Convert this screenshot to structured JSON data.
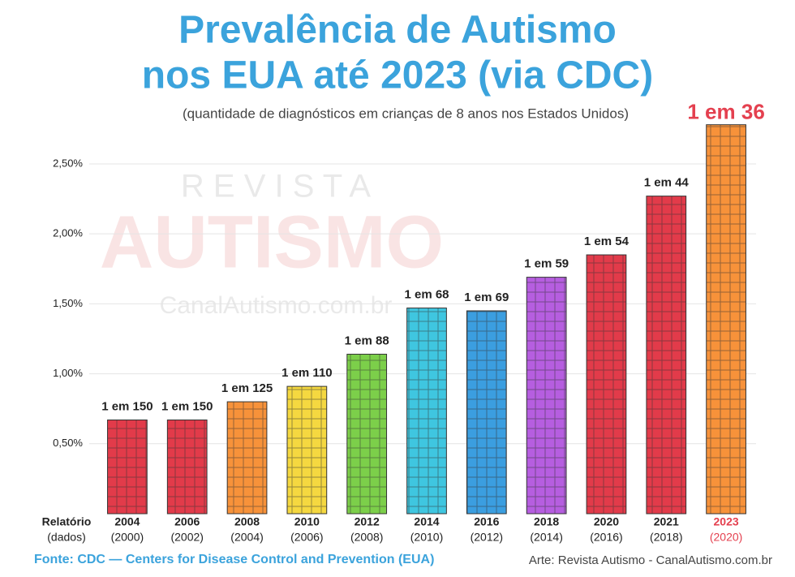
{
  "chart_data": {
    "type": "bar",
    "title": [
      "Prevalência de Autismo",
      "nos EUA até 2023 (via CDC)"
    ],
    "subtitle": "(quantidade de diagnósticos em crianças de 8 anos nos Estados Unidos)",
    "x_label": [
      "Relatório",
      "(dados)"
    ],
    "categories": [
      "2004",
      "2006",
      "2008",
      "2010",
      "2012",
      "2014",
      "2016",
      "2018",
      "2020",
      "2021",
      "2023"
    ],
    "data_years": [
      "(2000)",
      "(2002)",
      "(2004)",
      "(2006)",
      "(2008)",
      "(2010)",
      "(2012)",
      "(2014)",
      "(2016)",
      "(2018)",
      "(2020)"
    ],
    "values": [
      0.67,
      0.67,
      0.8,
      0.91,
      1.14,
      1.47,
      1.45,
      1.69,
      1.85,
      2.27,
      2.78
    ],
    "value_labels": [
      "1 em 150",
      "1 em 150",
      "1 em 125",
      "1 em 110",
      "1 em 88",
      "1 em 68",
      "1 em 69",
      "1 em 59",
      "1 em 54",
      "1 em 44",
      "1 em 36"
    ],
    "colors": [
      "#e23b4a",
      "#e23b4a",
      "#f7923a",
      "#f5d840",
      "#7ccf4a",
      "#3fc6e0",
      "#3b9ee0",
      "#b65ee0",
      "#e23b4a",
      "#e23b4a",
      "#f7923a"
    ],
    "highlight": {
      "index": 10,
      "color": "#e4404f"
    },
    "ylim": [
      0,
      2.9
    ],
    "yticks": [
      {
        "value": 0.5,
        "label": "0,50%"
      },
      {
        "value": 1.0,
        "label": "1,00%"
      },
      {
        "value": 1.5,
        "label": "1,50%"
      },
      {
        "value": 2.0,
        "label": "2,00%"
      },
      {
        "value": 2.5,
        "label": "2,50%"
      }
    ],
    "grid": true,
    "watermark": [
      "R E V I S T A",
      "AUTISMO",
      "CanalAutismo.com.br"
    ],
    "source": "Fonte: CDC — Centers for Disease Control and Prevention (EUA)",
    "credit": "Arte: Revista Autismo - CanalAutismo.com.br"
  }
}
